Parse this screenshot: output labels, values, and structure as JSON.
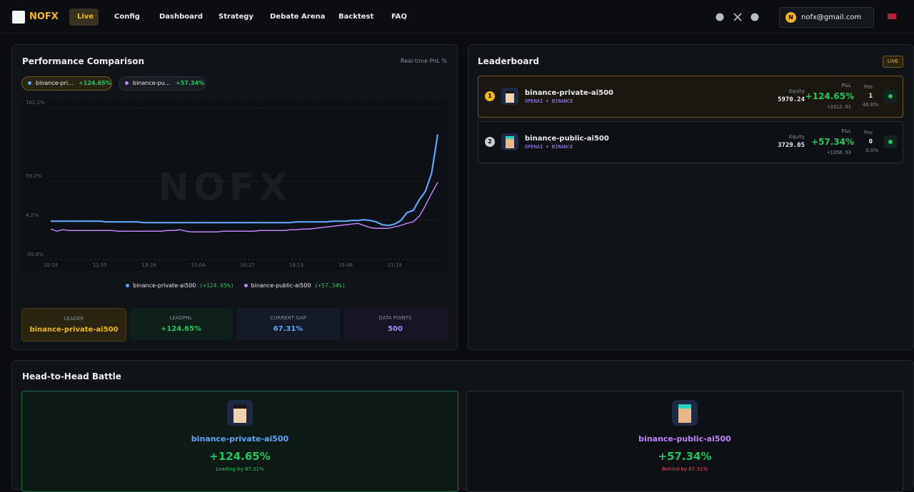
{
  "nav": {
    "logo": "NOFX",
    "links": [
      "Live",
      "Config",
      "Dashboard",
      "Strategy",
      "Debate Arena",
      "Backtest",
      "FAQ"
    ],
    "avatar": "N",
    "user": "nofx@gmail.com"
  },
  "performance": {
    "title": "Performance Comparison",
    "subtitle": "Real-time PnL %",
    "watermark": "NOFX",
    "chips": [
      {
        "label": "binance-pri...",
        "value": "+124.65%"
      },
      {
        "label": "binance-pu...",
        "value": "+57.34%"
      }
    ],
    "chart_data": {
      "type": "line",
      "x": [
        "10:19",
        null,
        null,
        null,
        null,
        null,
        null,
        null,
        "11:55",
        null,
        null,
        null,
        null,
        null,
        null,
        null,
        "13:28",
        null,
        null,
        null,
        null,
        null,
        null,
        null,
        "15:04",
        null,
        null,
        null,
        null,
        null,
        null,
        null,
        "16:37",
        null,
        null,
        null,
        null,
        null,
        null,
        null,
        "18:13",
        null,
        null,
        null,
        null,
        null,
        null,
        null,
        "19:46",
        null,
        null,
        null,
        null,
        null,
        null,
        null,
        "21:19",
        null,
        null,
        null,
        null,
        null,
        null,
        null
      ],
      "series": [
        {
          "name": "binance-private-ai500",
          "color": "#60a5fa",
          "pnl": "(+124.65%)",
          "values": [
            3,
            3,
            3,
            3,
            3,
            3,
            3,
            3,
            3,
            2,
            2,
            2,
            2,
            2,
            2,
            1,
            1,
            1,
            1,
            1,
            1,
            1,
            1,
            1,
            1,
            1,
            1,
            1,
            1,
            1,
            1,
            1,
            1,
            1,
            1,
            1,
            1,
            1,
            1,
            1,
            2,
            2,
            2,
            2,
            2,
            2,
            3,
            3,
            3,
            4,
            4,
            5,
            4,
            2,
            -2,
            -3,
            -1,
            4,
            15,
            18,
            33,
            45,
            70,
            124.65
          ]
        },
        {
          "name": "binance-public-ai500",
          "color": "#c084fc",
          "pnl": "(+57.34%)",
          "values": [
            -8,
            -11,
            -9,
            -10,
            -10,
            -10,
            -10,
            -10,
            -10,
            -10,
            -10,
            -11,
            -11,
            -11,
            -11,
            -11,
            -11,
            -11,
            -11,
            -10,
            -10,
            -9,
            -11,
            -12,
            -12,
            -12,
            -12,
            -12,
            -11,
            -11,
            -11,
            -11,
            -11,
            -11,
            -10,
            -10,
            -10,
            -10,
            -10,
            -9,
            -9,
            -8,
            -8,
            -7,
            -6,
            -5,
            -4,
            -3,
            -2,
            -1,
            0,
            -3,
            -6,
            -7,
            -7,
            -7,
            -5,
            -3,
            0,
            2,
            10,
            25,
            42,
            57.34
          ]
        }
      ],
      "ylim": [
        -50.8,
        162.1
      ],
      "yticks": [
        {
          "value": -50.8,
          "label": "-50.8%"
        },
        {
          "value": 4.2,
          "label": "4.2%"
        },
        {
          "value": 59.2,
          "label": "59.2%"
        },
        {
          "value": 162.1,
          "label": "162.1%"
        }
      ],
      "grid": true
    },
    "stats": [
      {
        "label": "LEADER",
        "value": "binance-private-ai500"
      },
      {
        "label": "LEADPNL",
        "value": "+124.65%"
      },
      {
        "label": "CURRENT GAP",
        "value": "67.31%"
      },
      {
        "label": "DATA POINTS",
        "value": "500"
      }
    ]
  },
  "leaderboard": {
    "title": "Leaderboard",
    "badge": "LIVE",
    "rows": [
      {
        "rank": "1",
        "name": "binance-private-ai500",
        "sub": "OPENAI + BINANCE",
        "equity_label": "Equity",
        "equity": "5970.24",
        "pnl_label": "P&L",
        "pnl": "+124.65%",
        "pnl_abs": "+3312.61",
        "pos_label": "Pos",
        "pos": "1",
        "pos_pct": "46.6%"
      },
      {
        "rank": "2",
        "name": "binance-public-ai500",
        "sub": "OPENAI + BINANCE",
        "equity_label": "Equity",
        "equity": "3729.05",
        "pnl_label": "P&L",
        "pnl": "+57.34%",
        "pnl_abs": "+1358.93",
        "pos_label": "Pos",
        "pos": "0",
        "pos_pct": "0.0%"
      }
    ]
  },
  "head_to_head": {
    "title": "Head-to-Head Battle",
    "cards": [
      {
        "name": "binance-private-ai500",
        "pnl": "+124.65%",
        "note": "Leading by 67.31%"
      },
      {
        "name": "binance-public-ai500",
        "pnl": "+57.34%",
        "note": "Behind by 67.31%"
      }
    ]
  }
}
